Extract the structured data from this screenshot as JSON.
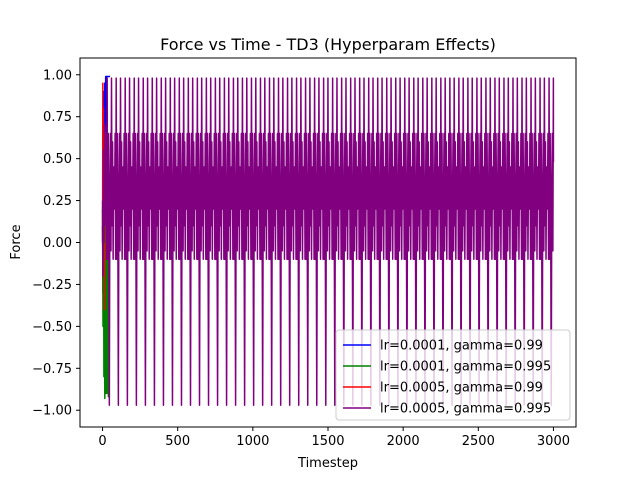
{
  "chart_data": {
    "type": "line",
    "title": "Force vs Time - TD3 (Hyperparam Effects)",
    "xlabel": "Timestep",
    "ylabel": "Force",
    "xlim": [
      -150,
      3150
    ],
    "ylim": [
      -1.1,
      1.1
    ],
    "xticks": [
      0,
      500,
      1000,
      1500,
      2000,
      2500,
      3000
    ],
    "yticks": [
      -1.0,
      -0.75,
      -0.5,
      -0.25,
      0.0,
      0.25,
      0.5,
      0.75,
      1.0
    ],
    "xtick_labels": [
      "0",
      "500",
      "1000",
      "1500",
      "2000",
      "2500",
      "3000"
    ],
    "ytick_labels": [
      "−1.00",
      "−0.75",
      "−0.50",
      "−0.25",
      "0.00",
      "0.25",
      "0.50",
      "0.75",
      "1.00"
    ],
    "grid": false,
    "legend_position": "lower-right",
    "series": [
      {
        "name": "lr=0.0001, gamma=0.99",
        "color": "#0000ff",
        "x": [
          0,
          3,
          6,
          9,
          12,
          15,
          18,
          21,
          24,
          27,
          30,
          33,
          36,
          39,
          42,
          45,
          48,
          50
        ],
        "y": [
          0.1,
          -0.3,
          0.5,
          0.9,
          0.2,
          0.95,
          0.7,
          0.99,
          0.6,
          0.99,
          0.99,
          0.99,
          0.99,
          0.99,
          0.99,
          0.99,
          0.99,
          0.99
        ]
      },
      {
        "name": "lr=0.0001, gamma=0.995",
        "color": "#008000",
        "x": [
          0,
          3,
          6,
          9,
          12,
          15,
          18,
          21,
          24,
          27,
          30,
          33,
          36,
          39,
          42
        ],
        "y": [
          0.2,
          -0.5,
          0.5,
          -0.8,
          0.1,
          -0.93,
          0.6,
          -0.9,
          0.3,
          -0.35,
          -0.9,
          0.2,
          -0.5,
          -0.92,
          -0.3
        ]
      },
      {
        "name": "lr=0.0005, gamma=0.99",
        "color": "#ff0000",
        "x": [
          0,
          2,
          4,
          6,
          8,
          10,
          12,
          14,
          16,
          18,
          20
        ],
        "y": [
          0.0,
          0.95,
          -0.2,
          0.8,
          0.3,
          0.6,
          -0.4,
          0.7,
          0.1,
          0.5,
          0.2
        ]
      },
      {
        "name": "lr=0.0005, gamma=0.995",
        "color": "#800080",
        "period": 60,
        "x_start": 0,
        "x_end": 3000,
        "peak_high": 0.98,
        "peak_low": -0.97,
        "mid_high": 0.65,
        "mid_low": -0.1,
        "center": 0.2
      }
    ]
  }
}
